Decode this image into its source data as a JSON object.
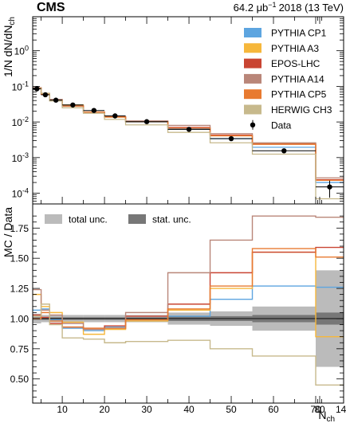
{
  "chart_data": {
    "type": "line",
    "header": {
      "experiment": "CMS",
      "lumi_value": "64.2 μb",
      "lumi_exp": "−1",
      "lumi_rest": "2018 (13 TeV)"
    },
    "x_axis": {
      "label_main": "N",
      "label_sub": "ch",
      "bin_edges": [
        3,
        5,
        7,
        10,
        15,
        20,
        25,
        35,
        45,
        55,
        70,
        140
      ],
      "ticks": [
        "10",
        "20",
        "30",
        "40",
        "50",
        "60",
        "70",
        "80",
        "140"
      ]
    },
    "top_panel": {
      "ylabel_main": "1/N dN/dN",
      "ylabel_sub": "ch",
      "scale": "log",
      "ylim": [
        5e-05,
        9
      ],
      "major_ticks": [
        {
          "base": "10",
          "exp": "0",
          "value": 1
        },
        {
          "base": "10",
          "exp": "-1",
          "value": 0.1
        },
        {
          "base": "10",
          "exp": "-2",
          "value": 0.01
        },
        {
          "base": "10",
          "exp": "-3",
          "value": 0.001
        },
        {
          "base": "10",
          "exp": "-4",
          "value": 0.0001
        }
      ],
      "data": {
        "name": "Data",
        "x": [
          4,
          6,
          8.5,
          12.5,
          17.5,
          22.5,
          30,
          40,
          50,
          62.5,
          105
        ],
        "y": [
          0.085,
          0.058,
          0.041,
          0.03,
          0.021,
          0.0148,
          0.0102,
          0.0062,
          0.0034,
          0.00155,
          0.00015
        ],
        "xerr": [
          1,
          1,
          1.5,
          2.5,
          2.5,
          2.5,
          5,
          5,
          5,
          7.5,
          35
        ],
        "yerr_rel": [
          0.05,
          0.05,
          0.05,
          0.05,
          0.05,
          0.05,
          0.06,
          0.07,
          0.1,
          0.15,
          0.5
        ]
      },
      "mc": [
        {
          "name": "PYTHIA CP1",
          "color": "#5da5e0",
          "values": [
            0.09,
            0.062,
            0.041,
            0.028,
            0.019,
            0.0138,
            0.01,
            0.0063,
            0.0034,
            0.00195,
            0.0002
          ]
        },
        {
          "name": "PYTHIA A3",
          "color": "#f6b73b",
          "values": [
            0.091,
            0.063,
            0.041,
            0.03,
            0.019,
            0.0136,
            0.0102,
            0.0068,
            0.0041,
            0.0025,
            0.00023
          ]
        },
        {
          "name": "EPOS-LHC",
          "color": "#c94432",
          "values": [
            0.088,
            0.06,
            0.04,
            0.028,
            0.019,
            0.0139,
            0.0104,
            0.007,
            0.0043,
            0.0024,
            0.00024
          ]
        },
        {
          "name": "PYTHIA A14",
          "color": "#b98679",
          "values": [
            0.092,
            0.063,
            0.043,
            0.029,
            0.019,
            0.0137,
            0.0107,
            0.008,
            0.0047,
            0.0026,
            0.00027
          ]
        },
        {
          "name": "PYTHIA CP5",
          "color": "#e87a30",
          "values": [
            0.089,
            0.061,
            0.04,
            0.028,
            0.019,
            0.0138,
            0.0101,
            0.0067,
            0.0041,
            0.00235,
            0.00023
          ]
        },
        {
          "name": "HERWIG CH3",
          "color": "#c7b98c",
          "values": [
            0.087,
            0.064,
            0.039,
            0.025,
            0.0175,
            0.0118,
            0.0083,
            0.0051,
            0.0026,
            0.00125,
            7e-05
          ]
        }
      ]
    },
    "bottom_panel": {
      "ylabel": "MC / Data",
      "ylim": [
        0.3,
        1.95
      ],
      "ticks": [
        "0.50",
        "0.75",
        "1.00",
        "1.25",
        "1.50",
        "1.75"
      ],
      "tick_values": [
        0.5,
        0.75,
        1.0,
        1.25,
        1.5,
        1.75
      ],
      "bands": [
        {
          "name": "total unc.",
          "color": "#bbbbbb",
          "half_width": [
            0.04,
            0.03,
            0.03,
            0.03,
            0.03,
            0.03,
            0.03,
            0.05,
            0.06,
            0.1,
            0.4
          ]
        },
        {
          "name": "stat. unc.",
          "color": "#777777",
          "half_width": [
            0.01,
            0.01,
            0.01,
            0.01,
            0.01,
            0.01,
            0.01,
            0.02,
            0.02,
            0.03,
            0.05
          ]
        }
      ],
      "ratios": [
        {
          "name": "PYTHIA CP1",
          "values": [
            1.07,
            1.08,
            0.99,
            0.92,
            0.9,
            0.93,
            0.98,
            1.02,
            1.16,
            1.27,
            1.26
          ]
        },
        {
          "name": "PYTHIA A3",
          "values": [
            1.2,
            1.1,
            1.05,
            0.97,
            0.87,
            0.91,
            0.98,
            1.07,
            1.25,
            1.55,
            0.85
          ]
        },
        {
          "name": "EPOS-LHC",
          "values": [
            1.03,
            1.01,
            0.96,
            0.93,
            0.92,
            0.94,
            1.02,
            1.12,
            1.38,
            1.55,
            1.59
          ]
        },
        {
          "name": "PYTHIA A14",
          "values": [
            1.24,
            1.07,
            1.03,
            0.96,
            0.91,
            0.92,
            1.05,
            1.38,
            1.65,
            1.85,
            1.84
          ]
        },
        {
          "name": "PYTHIA CP5",
          "values": [
            1.0,
            1.05,
            0.98,
            0.93,
            0.92,
            0.92,
            0.99,
            1.08,
            1.27,
            1.58,
            1.51
          ]
        },
        {
          "name": "HERWIG CH3",
          "values": [
            1.02,
            1.12,
            0.95,
            0.84,
            0.83,
            0.8,
            0.81,
            0.82,
            0.75,
            0.69,
            0.45
          ]
        }
      ]
    }
  }
}
